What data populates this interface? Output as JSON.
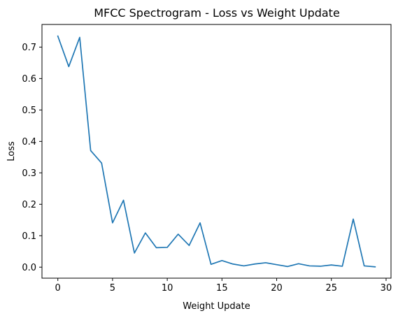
{
  "chart_data": {
    "type": "line",
    "title": "MFCC Spectrogram - Loss vs Weight Update",
    "xlabel": "Weight Update",
    "ylabel": "Loss",
    "xlim": [
      -1.45,
      30.45
    ],
    "ylim": [
      -0.035,
      0.772
    ],
    "xticks": [
      0,
      5,
      10,
      15,
      20,
      25,
      30
    ],
    "xtick_labels": [
      "0",
      "5",
      "10",
      "15",
      "20",
      "25",
      "30"
    ],
    "yticks": [
      0.0,
      0.1,
      0.2,
      0.3,
      0.4,
      0.5,
      0.6,
      0.7
    ],
    "ytick_labels": [
      "0.0",
      "0.1",
      "0.2",
      "0.3",
      "0.4",
      "0.5",
      "0.6",
      "0.7"
    ],
    "grid": false,
    "series": [
      {
        "color": "#1f77b4",
        "x": [
          0,
          1,
          2,
          3,
          4,
          5,
          6,
          7,
          8,
          9,
          10,
          11,
          12,
          13,
          14,
          15,
          16,
          17,
          18,
          19,
          20,
          21,
          22,
          23,
          24,
          25,
          26,
          27,
          28,
          29
        ],
        "y": [
          0.735,
          0.638,
          0.731,
          0.371,
          0.331,
          0.141,
          0.213,
          0.045,
          0.109,
          0.062,
          0.063,
          0.105,
          0.069,
          0.141,
          0.009,
          0.021,
          0.01,
          0.004,
          0.01,
          0.014,
          0.008,
          0.002,
          0.011,
          0.004,
          0.003,
          0.007,
          0.003,
          0.153,
          0.004,
          0.001
        ]
      }
    ]
  }
}
